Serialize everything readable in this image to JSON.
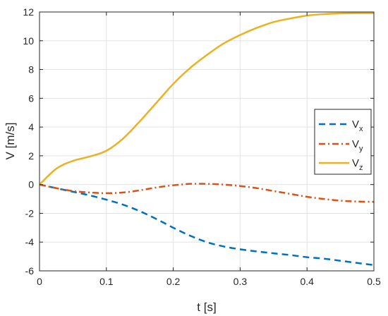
{
  "chart_data": {
    "type": "line",
    "xlabel": "t [s]",
    "ylabel": "V [m/s]",
    "xlim": [
      0,
      0.5
    ],
    "ylim": [
      -6,
      12
    ],
    "xticks": [
      0,
      0.1,
      0.2,
      0.3,
      0.4,
      0.5
    ],
    "xtick_labels": [
      "0",
      "0.1",
      "0.2",
      "0.3",
      "0.4",
      "0.5"
    ],
    "yticks": [
      -6,
      -4,
      -2,
      0,
      2,
      4,
      6,
      8,
      10,
      12
    ],
    "ytick_labels": [
      "-6",
      "-4",
      "-2",
      "0",
      "2",
      "4",
      "6",
      "8",
      "10",
      "12"
    ],
    "grid": true,
    "legend_position": "right",
    "x": [
      0,
      0.025,
      0.05,
      0.075,
      0.1,
      0.125,
      0.15,
      0.175,
      0.2,
      0.225,
      0.25,
      0.275,
      0.3,
      0.325,
      0.35,
      0.375,
      0.4,
      0.425,
      0.45,
      0.475,
      0.5
    ],
    "series": [
      {
        "label_main": "V",
        "label_sub": "x",
        "color": "#0072BD",
        "dash": "dashed",
        "values": [
          0,
          -0.25,
          -0.5,
          -0.75,
          -1.05,
          -1.4,
          -1.85,
          -2.4,
          -3.0,
          -3.55,
          -4.0,
          -4.3,
          -4.5,
          -4.65,
          -4.78,
          -4.9,
          -5.05,
          -5.15,
          -5.3,
          -5.45,
          -5.6
        ]
      },
      {
        "label_main": "V",
        "label_sub": "y",
        "color": "#D95319",
        "dash": "dashdot",
        "values": [
          0,
          -0.25,
          -0.45,
          -0.55,
          -0.6,
          -0.55,
          -0.4,
          -0.2,
          -0.05,
          0.05,
          0.05,
          0.0,
          -0.1,
          -0.25,
          -0.45,
          -0.65,
          -0.85,
          -1.0,
          -1.12,
          -1.18,
          -1.2
        ]
      },
      {
        "label_main": "V",
        "label_sub": "z",
        "color": "#EDB120",
        "dash": "solid",
        "values": [
          0,
          1.1,
          1.65,
          1.95,
          2.35,
          3.2,
          4.4,
          5.7,
          7.0,
          8.1,
          9.0,
          9.8,
          10.4,
          10.9,
          11.3,
          11.55,
          11.75,
          11.85,
          11.9,
          11.92,
          11.92
        ]
      }
    ]
  }
}
